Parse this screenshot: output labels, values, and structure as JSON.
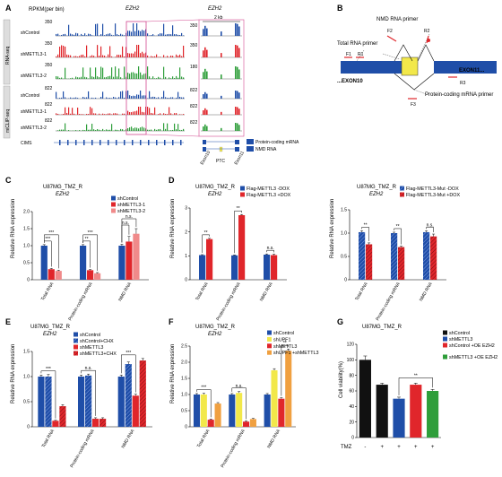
{
  "colors": {
    "blue": "#1f4ea8",
    "red": "#e0262b",
    "pink": "#f08a8a",
    "green": "#2e9e3a",
    "yellow": "#f2e84a",
    "orange": "#f0a040",
    "black": "#111111",
    "grey": "#888888",
    "magenta": "#d2478f"
  },
  "panelA": {
    "letter": "A",
    "gene": "EZH2",
    "rpkm": "RPKM(per bin)",
    "zoom_gene": "EZH2",
    "scale": "2 kb",
    "tracks": [
      {
        "name": "shControl",
        "max": "350",
        "zmax": "350",
        "color": "#1f4ea8"
      },
      {
        "name": "shMETTL3-1",
        "max": "350",
        "zmax": "350",
        "color": "#e0262b"
      },
      {
        "name": "shMETTL3-2",
        "max": "350",
        "zmax": "180",
        "color": "#2e9e3a"
      },
      {
        "name": "shControl",
        "max": "822",
        "zmax": "822",
        "color": "#1f4ea8"
      },
      {
        "name": "shMETTL3-1",
        "max": "822",
        "zmax": "822",
        "color": "#e0262b"
      },
      {
        "name": "shMETTL3-2",
        "max": "822",
        "zmax": "822",
        "color": "#2e9e3a"
      }
    ],
    "group_rna": "RNA-seq",
    "group_miclip": "miCLIP-seq",
    "cims": "CIMS",
    "legend": [
      "Protein-coding mRNA",
      "NMD RNA"
    ],
    "exons": [
      "Exon10",
      "PTC",
      "Exon11"
    ]
  },
  "panelB": {
    "letter": "B",
    "nmd_primer": "NMD RNA primer",
    "total_primer": "Total RNA primer",
    "pc_primer": "Protein-coding mRNA primer",
    "exon10": "...EXON10",
    "exon11": "EXON11...",
    "primers": [
      "F1",
      "R1",
      "F2",
      "R2",
      "F3",
      "R3"
    ]
  },
  "panelC": {
    "letter": "C",
    "cell": "U87MG_TMZ_R",
    "gene": "EZH2",
    "ylabel": "Relative RNA expression",
    "chart_data": {
      "type": "bar",
      "categories": [
        "Total RNA",
        "Protein-coding mRNA",
        "NMD RNA"
      ],
      "ylim": [
        0,
        2.0
      ],
      "yticks": [
        "0",
        "0.5",
        "1.0",
        "1.5",
        "2.0"
      ],
      "series": [
        {
          "name": "shControl",
          "color": "#1f4ea8",
          "values": [
            1.0,
            1.0,
            1.0
          ],
          "err": [
            0.03,
            0.03,
            0.04
          ]
        },
        {
          "name": "shMETTL3-1",
          "color": "#e0262b",
          "values": [
            0.31,
            0.28,
            1.12
          ],
          "err": [
            0.02,
            0.02,
            0.15
          ]
        },
        {
          "name": "shMETTL3-2",
          "color": "#f08a8a",
          "values": [
            0.26,
            0.19,
            1.35
          ],
          "err": [
            0.02,
            0.02,
            0.15
          ]
        }
      ],
      "sig": [
        {
          "group": 0,
          "from": 0,
          "to": 1,
          "label": "***"
        },
        {
          "group": 0,
          "from": 0,
          "to": 2,
          "label": "***"
        },
        {
          "group": 1,
          "from": 0,
          "to": 1,
          "label": "**"
        },
        {
          "group": 1,
          "from": 0,
          "to": 2,
          "label": "***"
        },
        {
          "group": 2,
          "from": 0,
          "to": 1,
          "label": "n.s."
        },
        {
          "group": 2,
          "from": 0,
          "to": 2,
          "label": "n.s."
        }
      ]
    }
  },
  "panelD1": {
    "letter": "D",
    "cell": "U87MG_TMZ_R",
    "gene": "EZH2",
    "ylabel": "Relative RNA expression",
    "chart_data": {
      "type": "bar",
      "categories": [
        "Total RNA",
        "Protein-coding mRNA",
        "NMD RNA"
      ],
      "ylim": [
        0,
        3
      ],
      "yticks": [
        "0",
        "1",
        "2",
        "3"
      ],
      "series": [
        {
          "name": "Flag-METTL3 -DOX",
          "color": "#1f4ea8",
          "values": [
            1.03,
            1.02,
            1.05
          ],
          "err": [
            0.02,
            0.02,
            0.03
          ]
        },
        {
          "name": "Flag-METTL3 +DOX",
          "color": "#e0262b",
          "values": [
            1.7,
            2.7,
            1.03
          ],
          "err": [
            0.03,
            0.03,
            0.04
          ]
        }
      ],
      "sig": [
        {
          "group": 0,
          "from": 0,
          "to": 1,
          "label": "**"
        },
        {
          "group": 1,
          "from": 0,
          "to": 1,
          "label": "**"
        },
        {
          "group": 2,
          "from": 0,
          "to": 1,
          "label": "n.s."
        }
      ]
    }
  },
  "panelD2": {
    "cell": "U87MG_TMZ_R",
    "gene": "EZH2",
    "ylabel": "Relative RNA expression",
    "chart_data": {
      "type": "bar",
      "categories": [
        "Total RNA",
        "Protein-coding mRNA",
        "NMD RNA"
      ],
      "ylim": [
        0,
        1.5
      ],
      "yticks": [
        "0",
        "0.5",
        "1.0",
        "1.5"
      ],
      "series": [
        {
          "name": "Flag-METTL3-Mut -DOX",
          "color": "#1f4ea8",
          "values": [
            1.02,
            1.0,
            1.02
          ],
          "err": [
            0.03,
            0.02,
            0.03
          ],
          "hatch": true
        },
        {
          "name": "Flag-METTL3-Mut +DOX",
          "color": "#e0262b",
          "values": [
            0.76,
            0.7,
            0.93
          ],
          "err": [
            0.03,
            0.02,
            0.05
          ],
          "hatch": true
        }
      ],
      "sig": [
        {
          "group": 0,
          "from": 0,
          "to": 1,
          "label": "**"
        },
        {
          "group": 1,
          "from": 0,
          "to": 1,
          "label": "**"
        },
        {
          "group": 2,
          "from": 0,
          "to": 1,
          "label": "n.s."
        }
      ]
    }
  },
  "panelE": {
    "letter": "E",
    "cell": "U87MG_TMZ_R",
    "gene": "EZH2",
    "ylabel": "Relative RNA expression",
    "chart_data": {
      "type": "bar",
      "categories": [
        "Total RNA",
        "Protein-coding mRNA",
        "NMD RNA"
      ],
      "ylim": [
        0,
        1.5
      ],
      "yticks": [
        "0",
        "0.5",
        "1.0",
        "1.5"
      ],
      "series": [
        {
          "name": "shControl",
          "color": "#1f4ea8",
          "values": [
            1.0,
            1.0,
            1.0
          ],
          "err": [
            0.03,
            0.03,
            0.03
          ]
        },
        {
          "name": "shControl+CHX",
          "color": "#1f4ea8",
          "values": [
            1.0,
            1.02,
            1.25
          ],
          "err": [
            0.04,
            0.03,
            0.04
          ],
          "hatch": true
        },
        {
          "name": "shMETTL3",
          "color": "#e0262b",
          "values": [
            0.12,
            0.16,
            0.62
          ],
          "err": [
            0.01,
            0.02,
            0.03
          ]
        },
        {
          "name": "shMETTL3+CHX",
          "color": "#e0262b",
          "values": [
            0.41,
            0.16,
            1.32
          ],
          "err": [
            0.03,
            0.02,
            0.04
          ],
          "hatch": true
        }
      ],
      "sig": [
        {
          "group": 0,
          "from": 0,
          "to": 2,
          "label": "***"
        },
        {
          "group": 1,
          "from": 0,
          "to": 2,
          "label": "n.s."
        },
        {
          "group": 2,
          "from": 0,
          "to": 2,
          "label": "***"
        }
      ]
    }
  },
  "panelF": {
    "letter": "F",
    "cell": "U87MG_TMZ_R",
    "gene": "EZH2",
    "ylabel": "Relative RNA expression",
    "chart_data": {
      "type": "bar",
      "categories": [
        "Total RNA",
        "Protein-coding mRNA",
        "NMD RNA"
      ],
      "ylim": [
        0,
        2.5
      ],
      "yticks": [
        "0",
        "0.5",
        "1.0",
        "1.5",
        "2.0",
        "2.5"
      ],
      "series": [
        {
          "name": "shControl",
          "color": "#1f4ea8",
          "values": [
            1.0,
            1.0,
            1.0
          ],
          "err": [
            0.03,
            0.03,
            0.03
          ]
        },
        {
          "name": "shUPF1",
          "color": "#f2e84a",
          "values": [
            1.0,
            1.05,
            1.75
          ],
          "err": [
            0.04,
            0.04,
            0.05
          ]
        },
        {
          "name": "shMETTL3",
          "color": "#e0262b",
          "values": [
            0.22,
            0.16,
            0.87
          ],
          "err": [
            0.02,
            0.02,
            0.03
          ]
        },
        {
          "name": "shUPF1 +shMETTL3",
          "color": "#f0a040",
          "values": [
            0.72,
            0.24,
            2.35
          ],
          "err": [
            0.03,
            0.02,
            0.06
          ]
        }
      ],
      "sig": [
        {
          "group": 0,
          "from": 0,
          "to": 2,
          "label": "***"
        },
        {
          "group": 1,
          "from": 0,
          "to": 2,
          "label": "n.s."
        },
        {
          "group": 2,
          "from": 2,
          "to": 3,
          "label": "**"
        }
      ]
    }
  },
  "panelG": {
    "letter": "G",
    "cell": "U87MG_TMZ_R",
    "ylabel": "Cell viability(%)",
    "xlabel": "TMZ",
    "chart_data": {
      "type": "bar",
      "categories": [
        "-",
        "+",
        "+",
        "+",
        "+"
      ],
      "ylim": [
        0,
        120
      ],
      "yticks": [
        "0",
        "20",
        "40",
        "60",
        "80",
        "100",
        "120"
      ],
      "values": [
        100,
        68,
        50,
        68,
        60
      ],
      "err": [
        5,
        2,
        2,
        2,
        2
      ],
      "colors": [
        "#111111",
        "#111111",
        "#1f4ea8",
        "#e0262b",
        "#2e9e3a"
      ],
      "legend": [
        {
          "name": "shControl",
          "color": "#111111"
        },
        {
          "name": "shMETTL3",
          "color": "#1f4ea8"
        },
        {
          "name": "shControl +OE EZH2",
          "color": "#e0262b"
        },
        {
          "name": "shMETTL3 +OE EZH2",
          "color": "#2e9e3a"
        }
      ],
      "sig": [
        {
          "from": 2,
          "to": 4,
          "label": "**"
        }
      ]
    }
  }
}
